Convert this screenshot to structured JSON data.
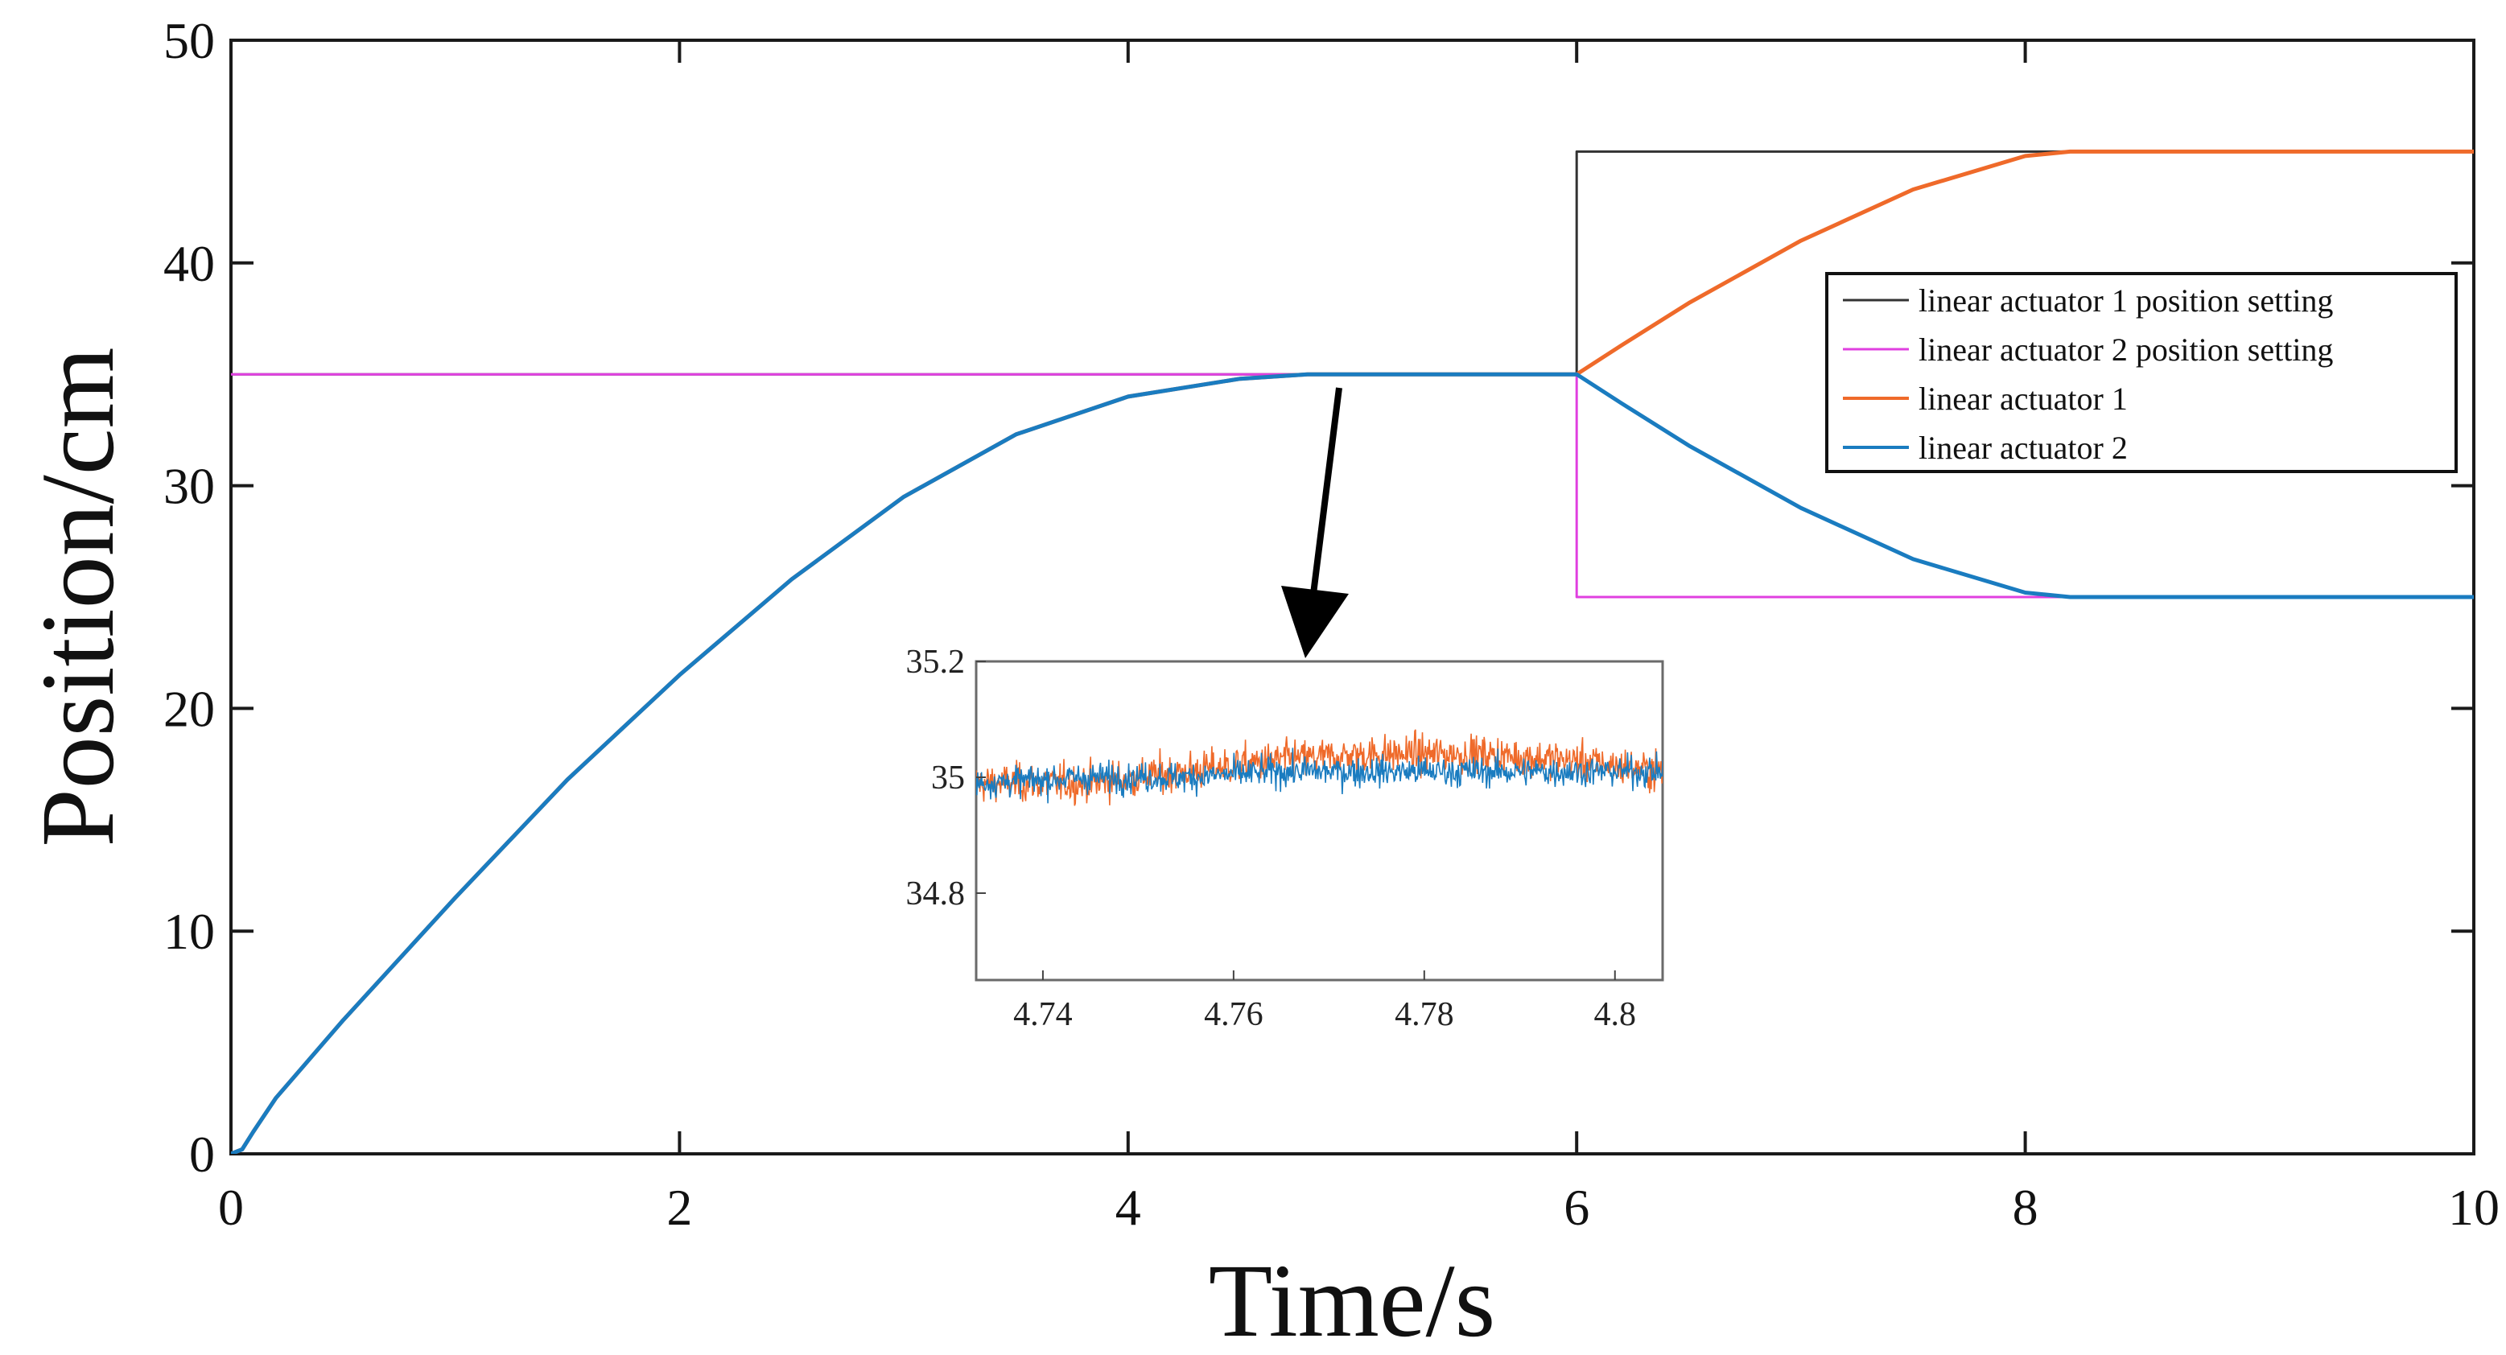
{
  "chart_data": [
    {
      "type": "line",
      "title": "",
      "xlabel": "Time/s",
      "ylabel": "Position/cm",
      "xlim": [
        0,
        10
      ],
      "ylim": [
        0,
        50
      ],
      "xticks": [
        0,
        2,
        4,
        6,
        8,
        10
      ],
      "yticks": [
        0,
        10,
        20,
        30,
        40,
        50
      ],
      "legend_position": "right, upper",
      "series": [
        {
          "name": "linear actuator 1 position setting",
          "color": "#333333",
          "x": [
            0,
            6,
            6,
            10
          ],
          "y": [
            35,
            35,
            45,
            45
          ]
        },
        {
          "name": "linear actuator 2 position setting",
          "color": "#e040e0",
          "x": [
            0,
            6,
            6,
            10
          ],
          "y": [
            35,
            35,
            25,
            25
          ]
        },
        {
          "name": "linear actuator 1",
          "color": "#ef6a2a",
          "x": [
            0,
            0.05,
            0.1,
            0.2,
            0.5,
            1,
            1.5,
            2,
            2.5,
            3,
            3.5,
            4,
            4.5,
            4.8,
            5,
            5.5,
            6,
            6.2,
            6.5,
            7,
            7.5,
            8,
            8.2,
            8.5,
            9,
            10
          ],
          "y": [
            0,
            0.2,
            1,
            2.5,
            6,
            11.5,
            16.8,
            21.5,
            25.8,
            29.5,
            32.3,
            34.0,
            34.8,
            35,
            35,
            35,
            35,
            36.3,
            38.2,
            41.0,
            43.3,
            44.8,
            45,
            45,
            45,
            45
          ]
        },
        {
          "name": "linear actuator 2",
          "color": "#1a7cc0",
          "x": [
            0,
            0.05,
            0.1,
            0.2,
            0.5,
            1,
            1.5,
            2,
            2.5,
            3,
            3.5,
            4,
            4.5,
            4.8,
            5,
            5.5,
            6,
            6.2,
            6.5,
            7,
            7.5,
            8,
            8.2,
            8.5,
            9,
            10
          ],
          "y": [
            0,
            0.2,
            1,
            2.5,
            6,
            11.5,
            16.8,
            21.5,
            25.8,
            29.5,
            32.3,
            34.0,
            34.8,
            35,
            35,
            35,
            35,
            33.7,
            31.8,
            29.0,
            26.7,
            25.2,
            25,
            25,
            25,
            25
          ]
        }
      ]
    },
    {
      "type": "line",
      "title": "",
      "xlabel": "",
      "ylabel": "",
      "xlim": [
        4.733,
        4.805
      ],
      "ylim": [
        34.65,
        35.2
      ],
      "xticks": [
        4.74,
        4.76,
        4.78,
        4.8
      ],
      "xtick_labels": [
        "4.74",
        "4.76",
        "4.78",
        "4.8"
      ],
      "yticks": [
        34.8,
        35,
        35.2
      ],
      "ytick_labels": [
        "34.8",
        "35",
        "35.2"
      ],
      "series": [
        {
          "name": "linear actuator 1",
          "color": "#ef6a2a",
          "x": [
            4.733,
            4.745,
            4.755,
            4.765,
            4.775,
            4.785,
            4.795,
            4.805
          ],
          "y": [
            34.99,
            34.99,
            35.01,
            35.03,
            35.04,
            35.04,
            35.03,
            35.01
          ]
        },
        {
          "name": "linear actuator 2",
          "color": "#1a7cc0",
          "x": [
            4.733,
            4.745,
            4.755,
            4.765,
            4.775,
            4.785,
            4.795,
            4.805
          ],
          "y": [
            34.99,
            35.0,
            35.0,
            35.01,
            35.01,
            35.01,
            35.01,
            35.01
          ]
        }
      ]
    }
  ]
}
